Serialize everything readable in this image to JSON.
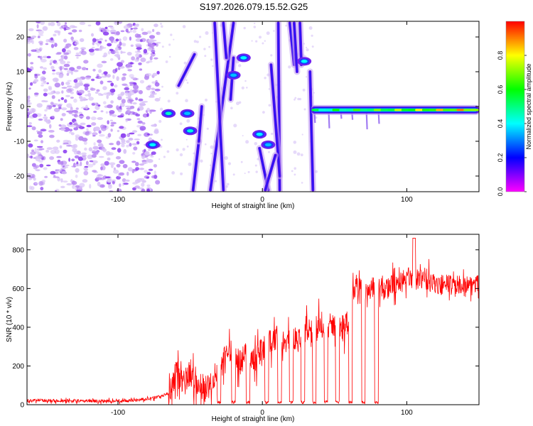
{
  "title": "S197.2026.079.15.52.G25",
  "chart_data": [
    {
      "type": "heatmap",
      "name": "spectrogram",
      "xlabel": "Height of straight line (km)",
      "ylabel": "Frequency (Hz)",
      "xlim": [
        -163,
        150
      ],
      "ylim": [
        -24.5,
        24.5
      ],
      "xticks": [
        -100,
        0,
        100
      ],
      "xtick_labels": [
        "-100",
        "0",
        "100"
      ],
      "yticks": [
        20,
        10,
        0,
        -10,
        -20
      ],
      "ytick_labels": [
        "20",
        "10",
        "0",
        "-10",
        "-20"
      ],
      "colorbar": {
        "label": "Normalized spectral amplitude",
        "range": [
          0,
          1
        ],
        "ticks": [
          0.0,
          0.2,
          0.4,
          0.6,
          0.8
        ],
        "tick_labels": [
          "0.0",
          "0.2",
          "0.4",
          "0.6",
          "0.8"
        ],
        "colors": [
          "#ff00ff",
          "#0000ff",
          "#00ffff",
          "#00ff00",
          "#ffff00",
          "#ff0000"
        ]
      },
      "noise_region": {
        "x_range": [
          -163,
          -72
        ],
        "freq_range": [
          -24.5,
          24.5
        ],
        "amplitude": 0.08
      },
      "carrier": {
        "x_range": [
          34,
          150
        ],
        "freq": -1,
        "amplitude_start": 0.55,
        "amplitude_end": 0.95
      },
      "blobs": [
        {
          "x": -76,
          "y": -11,
          "amp": 0.35
        },
        {
          "x": -65,
          "y": -2,
          "amp": 0.4
        },
        {
          "x": -50,
          "y": -7,
          "amp": 0.38
        },
        {
          "x": -52,
          "y": -2,
          "amp": 0.3
        },
        {
          "x": -13,
          "y": 14,
          "amp": 0.35
        },
        {
          "x": -20,
          "y": 9,
          "amp": 0.3
        },
        {
          "x": -2,
          "y": -8,
          "amp": 0.35
        },
        {
          "x": 4,
          "y": -11,
          "amp": 0.3
        },
        {
          "x": 29,
          "y": 13,
          "amp": 0.35
        }
      ],
      "streaks": [
        {
          "x1": -36,
          "y1": -24,
          "x2": -20,
          "y2": 24
        },
        {
          "x1": -33,
          "y1": 24,
          "x2": -27,
          "y2": -24
        },
        {
          "x1": -27,
          "y1": 24,
          "x2": -25,
          "y2": 14
        },
        {
          "x1": -20,
          "y1": 14,
          "x2": -22,
          "y2": 2
        },
        {
          "x1": -48,
          "y1": -24,
          "x2": -44,
          "y2": -10
        },
        {
          "x1": 11,
          "y1": 24,
          "x2": 12,
          "y2": -24
        },
        {
          "x1": 19,
          "y1": 24,
          "x2": 22,
          "y2": 12
        },
        {
          "x1": 22,
          "y1": 24,
          "x2": 24,
          "y2": 10
        },
        {
          "x1": 26,
          "y1": 24,
          "x2": 27,
          "y2": 12
        },
        {
          "x1": 33,
          "y1": 10,
          "x2": 35,
          "y2": -24
        },
        {
          "x1": 6,
          "y1": 12,
          "x2": 12,
          "y2": -20
        },
        {
          "x1": -2,
          "y1": -12,
          "x2": 4,
          "y2": -24
        },
        {
          "x1": 2,
          "y1": -24,
          "x2": 9,
          "y2": -14
        },
        {
          "x1": -47,
          "y1": 15,
          "x2": -58,
          "y2": 6
        },
        {
          "x1": -44,
          "y1": -10,
          "x2": -42,
          "y2": 0
        }
      ]
    },
    {
      "type": "line",
      "name": "snr",
      "xlabel": "Height of straight line (km)",
      "ylabel": "SNR (10 * v/v)",
      "xlim": [
        -163,
        150
      ],
      "ylim": [
        0,
        880
      ],
      "xticks": [
        -100,
        0,
        100
      ],
      "xtick_labels": [
        "-100",
        "0",
        "100"
      ],
      "yticks": [
        0,
        200,
        400,
        600,
        800
      ],
      "ytick_labels": [
        "0",
        "200",
        "400",
        "600",
        "800"
      ],
      "color": "#ff0000",
      "baseline_points": [
        [
          -163,
          22
        ],
        [
          -130,
          20
        ],
        [
          -100,
          18
        ],
        [
          -85,
          24
        ],
        [
          -72,
          40
        ],
        [
          -64,
          60
        ],
        [
          -60,
          180
        ],
        [
          -55,
          100
        ],
        [
          -50,
          170
        ],
        [
          -45,
          120
        ],
        [
          -40,
          80
        ],
        [
          -35,
          130
        ],
        [
          -30,
          180
        ],
        [
          -25,
          250
        ],
        [
          -20,
          230
        ],
        [
          -15,
          220
        ],
        [
          -10,
          270
        ],
        [
          -5,
          240
        ],
        [
          0,
          280
        ],
        [
          5,
          330
        ],
        [
          10,
          340
        ],
        [
          15,
          320
        ],
        [
          20,
          360
        ],
        [
          25,
          330
        ],
        [
          30,
          390
        ],
        [
          35,
          360
        ],
        [
          40,
          420
        ],
        [
          45,
          400
        ],
        [
          50,
          410
        ],
        [
          55,
          390
        ],
        [
          60,
          440
        ],
        [
          62,
          580
        ],
        [
          65,
          620
        ],
        [
          70,
          580
        ],
        [
          75,
          600
        ],
        [
          80,
          610
        ],
        [
          85,
          590
        ],
        [
          90,
          620
        ],
        [
          95,
          640
        ],
        [
          100,
          660
        ],
        [
          105,
          640
        ],
        [
          110,
          650
        ],
        [
          120,
          620
        ],
        [
          130,
          620
        ],
        [
          140,
          610
        ],
        [
          150,
          630
        ]
      ],
      "dropouts_x": [
        -30,
        -20,
        -10,
        3,
        12,
        20,
        28,
        36,
        44,
        52,
        61,
        70,
        79
      ]
    }
  ]
}
